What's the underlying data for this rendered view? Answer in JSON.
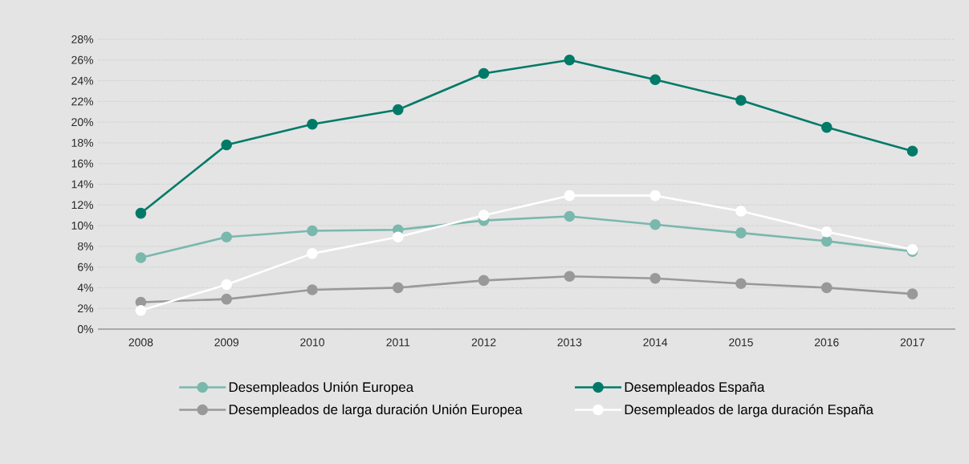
{
  "chart_data": {
    "type": "line",
    "categories": [
      "2008",
      "2009",
      "2010",
      "2011",
      "2012",
      "2013",
      "2014",
      "2015",
      "2016",
      "2017"
    ],
    "series": [
      {
        "name": "Desempleados Unión Europea",
        "color": "#7ab8ad",
        "values": [
          6.9,
          8.9,
          9.5,
          9.6,
          10.5,
          10.9,
          10.1,
          9.3,
          8.5,
          7.5
        ]
      },
      {
        "name": "Desempleados España",
        "color": "#007a68",
        "values": [
          11.2,
          17.8,
          19.8,
          21.2,
          24.7,
          26.0,
          24.1,
          22.1,
          19.5,
          17.2
        ]
      },
      {
        "name": "Desempleados de larga duración Unión Europea",
        "color": "#999999",
        "values": [
          2.6,
          2.9,
          3.8,
          4.0,
          4.7,
          5.1,
          4.9,
          4.4,
          4.0,
          3.4
        ]
      },
      {
        "name": "Desempleados de larga duración España",
        "color": "#ffffff",
        "values": [
          1.8,
          4.3,
          7.3,
          8.9,
          11.0,
          12.9,
          12.9,
          11.4,
          9.4,
          7.7
        ]
      }
    ],
    "ylim": [
      0,
      28
    ],
    "yticks": [
      {
        "value": 0,
        "label": "0%"
      },
      {
        "value": 2,
        "label": "2%"
      },
      {
        "value": 4,
        "label": "4%"
      },
      {
        "value": 6,
        "label": "6%"
      },
      {
        "value": 8,
        "label": "8%"
      },
      {
        "value": 10,
        "label": "10%"
      },
      {
        "value": 12,
        "label": "12%"
      },
      {
        "value": 14,
        "label": "14%"
      },
      {
        "value": 16,
        "label": "16%"
      },
      {
        "value": 18,
        "label": "18%"
      },
      {
        "value": 20,
        "label": "20%"
      },
      {
        "value": 22,
        "label": "22%"
      },
      {
        "value": 24,
        "label": "24%"
      },
      {
        "value": 26,
        "label": "26%"
      },
      {
        "value": 28,
        "label": "28%"
      }
    ],
    "grid": "y",
    "legend": "bottom",
    "marker": "circle",
    "line_style": "solid"
  }
}
